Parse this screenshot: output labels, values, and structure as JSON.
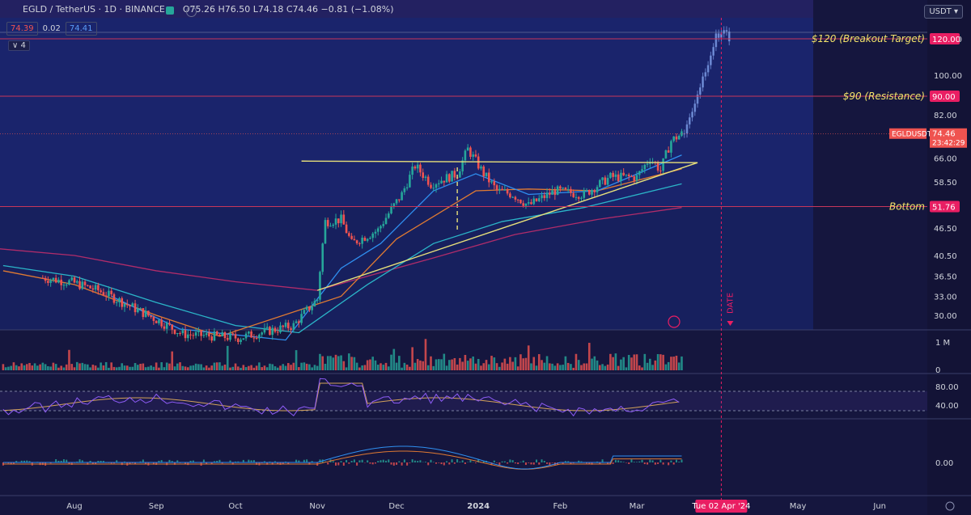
{
  "header": {
    "symbol": "EGLD / TetherUS · 1D · BINANCE",
    "ohlc": "O75.26 H76.50 L74.18 C74.46 −0.81 (−1.08%)",
    "box_left": "74.39",
    "box_mid": "0.02",
    "box_right": "74.41",
    "collapse": "4",
    "currency": "USDT"
  },
  "colors": {
    "up": "#26a69a",
    "down": "#ef5350",
    "hline": "#c8365a",
    "trendline": "#e8e07a",
    "ema_blue": "#2f8ff0",
    "ema_cyan": "#2bb5c8",
    "ema_orange": "#e07a32",
    "ema_purple": "#b02c6a",
    "rsi": "#8e5cf6",
    "rsi_ma": "#d2a15a",
    "accent": "#e91e63"
  },
  "chart_data": {
    "type": "candlestick",
    "symbol": "EGLDUSDT",
    "interval": "1D",
    "y_ticks": [
      120,
      100,
      82,
      66,
      58.5,
      46.5,
      40.5,
      36.5,
      33,
      30
    ],
    "y_tick_labels": [
      "120.00",
      "100.00",
      "82.00",
      "66.00",
      "58.50",
      "46.50",
      "40.50",
      "36.50",
      "33.00",
      "30.00"
    ],
    "x_labels": [
      "Aug",
      "Sep",
      "Oct",
      "Nov",
      "Dec",
      "2024",
      "Feb",
      "Mar",
      "May",
      "Jun"
    ],
    "date_marker": "Tue 02 Apr '24",
    "date_label": "DATE",
    "last_price": {
      "label": "EGLDUSDT",
      "value": "74.46",
      "countdown": "23:42:29"
    },
    "levels": [
      {
        "price": 120,
        "label": "$120 (Breakout Target)",
        "tag": "120.00"
      },
      {
        "price": 90,
        "label": "$90 (Resistance)",
        "tag": "90.00"
      },
      {
        "price": 51.76,
        "label": "Bottom",
        "tag": "51.76"
      }
    ],
    "candles": [
      {
        "date": "2023-07-20",
        "close": 36.2
      },
      {
        "date": "2023-07-31",
        "close": 35.4
      },
      {
        "date": "2023-08-10",
        "close": 34.0
      },
      {
        "date": "2023-08-25",
        "close": 30.8
      },
      {
        "date": "2023-09-11",
        "close": 27.3
      },
      {
        "date": "2023-10-02",
        "close": 26.8
      },
      {
        "date": "2023-10-23",
        "close": 28.5
      },
      {
        "date": "2023-11-01",
        "close": 32.5
      },
      {
        "date": "2023-11-04",
        "close": 48.0
      },
      {
        "date": "2023-11-10",
        "close": 48.5
      },
      {
        "date": "2023-11-14",
        "close": 43.0
      },
      {
        "date": "2023-11-24",
        "close": 46.0
      },
      {
        "date": "2023-12-03",
        "close": 55.0
      },
      {
        "date": "2023-12-08",
        "close": 63.5
      },
      {
        "date": "2023-12-14",
        "close": 58.0
      },
      {
        "date": "2023-12-24",
        "close": 61.0
      },
      {
        "date": "2023-12-28",
        "close": 69.0
      },
      {
        "date": "2024-01-03",
        "close": 61.0
      },
      {
        "date": "2024-01-08",
        "close": 56.0
      },
      {
        "date": "2024-01-14",
        "close": 55.0
      },
      {
        "date": "2024-01-20",
        "close": 52.0
      },
      {
        "date": "2024-01-30",
        "close": 56.0
      },
      {
        "date": "2024-02-10",
        "close": 55.0
      },
      {
        "date": "2024-02-20",
        "close": 60.0
      },
      {
        "date": "2024-03-01",
        "close": 60.0
      },
      {
        "date": "2024-03-06",
        "close": 66.0
      },
      {
        "date": "2024-03-10",
        "close": 62.0
      },
      {
        "date": "2024-03-14",
        "close": 72.0
      },
      {
        "date": "2024-03-18",
        "close": 74.46
      }
    ],
    "projection": "ghost candle path from ~74 rising to ~125 by early April 2024",
    "indicators": {
      "rsi_levels": [
        "80.00",
        "40.00"
      ],
      "macd_zero": "0.00",
      "volume_label": "1 M",
      "volume_zero": "0"
    }
  }
}
